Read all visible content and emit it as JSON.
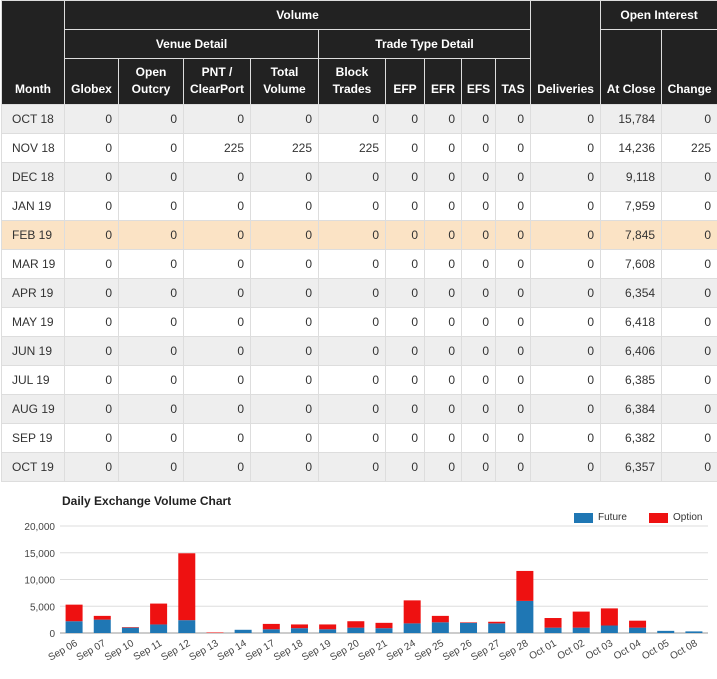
{
  "table": {
    "group_volume": "Volume",
    "group_open_interest": "Open Interest",
    "sub_venue": "Venue Detail",
    "sub_trade_type": "Trade Type Detail",
    "col_month": "Month",
    "col_globex": "Globex",
    "col_open_outcry": "Open Outcry",
    "col_pnt": "PNT / ClearPort",
    "col_total_volume": "Total Volume",
    "col_block_trades": "Block Trades",
    "col_efp": "EFP",
    "col_efr": "EFR",
    "col_efs": "EFS",
    "col_tas": "TAS",
    "col_deliveries": "Deliveries",
    "col_at_close": "At Close",
    "col_change": "Change",
    "rows": [
      {
        "month": "OCT 18",
        "globex": "0",
        "open_outcry": "0",
        "pnt": "0",
        "total": "0",
        "block": "0",
        "efp": "0",
        "efr": "0",
        "efs": "0",
        "tas": "0",
        "deliveries": "0",
        "at_close": "15,784",
        "change": "0"
      },
      {
        "month": "NOV 18",
        "globex": "0",
        "open_outcry": "0",
        "pnt": "225",
        "total": "225",
        "block": "225",
        "efp": "0",
        "efr": "0",
        "efs": "0",
        "tas": "0",
        "deliveries": "0",
        "at_close": "14,236",
        "change": "225"
      },
      {
        "month": "DEC 18",
        "globex": "0",
        "open_outcry": "0",
        "pnt": "0",
        "total": "0",
        "block": "0",
        "efp": "0",
        "efr": "0",
        "efs": "0",
        "tas": "0",
        "deliveries": "0",
        "at_close": "9,118",
        "change": "0"
      },
      {
        "month": "JAN 19",
        "globex": "0",
        "open_outcry": "0",
        "pnt": "0",
        "total": "0",
        "block": "0",
        "efp": "0",
        "efr": "0",
        "efs": "0",
        "tas": "0",
        "deliveries": "0",
        "at_close": "7,959",
        "change": "0"
      },
      {
        "month": "FEB 19",
        "globex": "0",
        "open_outcry": "0",
        "pnt": "0",
        "total": "0",
        "block": "0",
        "efp": "0",
        "efr": "0",
        "efs": "0",
        "tas": "0",
        "deliveries": "0",
        "at_close": "7,845",
        "change": "0"
      },
      {
        "month": "MAR 19",
        "globex": "0",
        "open_outcry": "0",
        "pnt": "0",
        "total": "0",
        "block": "0",
        "efp": "0",
        "efr": "0",
        "efs": "0",
        "tas": "0",
        "deliveries": "0",
        "at_close": "7,608",
        "change": "0"
      },
      {
        "month": "APR 19",
        "globex": "0",
        "open_outcry": "0",
        "pnt": "0",
        "total": "0",
        "block": "0",
        "efp": "0",
        "efr": "0",
        "efs": "0",
        "tas": "0",
        "deliveries": "0",
        "at_close": "6,354",
        "change": "0"
      },
      {
        "month": "MAY 19",
        "globex": "0",
        "open_outcry": "0",
        "pnt": "0",
        "total": "0",
        "block": "0",
        "efp": "0",
        "efr": "0",
        "efs": "0",
        "tas": "0",
        "deliveries": "0",
        "at_close": "6,418",
        "change": "0"
      },
      {
        "month": "JUN 19",
        "globex": "0",
        "open_outcry": "0",
        "pnt": "0",
        "total": "0",
        "block": "0",
        "efp": "0",
        "efr": "0",
        "efs": "0",
        "tas": "0",
        "deliveries": "0",
        "at_close": "6,406",
        "change": "0"
      },
      {
        "month": "JUL 19",
        "globex": "0",
        "open_outcry": "0",
        "pnt": "0",
        "total": "0",
        "block": "0",
        "efp": "0",
        "efr": "0",
        "efs": "0",
        "tas": "0",
        "deliveries": "0",
        "at_close": "6,385",
        "change": "0"
      },
      {
        "month": "AUG 19",
        "globex": "0",
        "open_outcry": "0",
        "pnt": "0",
        "total": "0",
        "block": "0",
        "efp": "0",
        "efr": "0",
        "efs": "0",
        "tas": "0",
        "deliveries": "0",
        "at_close": "6,384",
        "change": "0"
      },
      {
        "month": "SEP 19",
        "globex": "0",
        "open_outcry": "0",
        "pnt": "0",
        "total": "0",
        "block": "0",
        "efp": "0",
        "efr": "0",
        "efs": "0",
        "tas": "0",
        "deliveries": "0",
        "at_close": "6,382",
        "change": "0"
      },
      {
        "month": "OCT 19",
        "globex": "0",
        "open_outcry": "0",
        "pnt": "0",
        "total": "0",
        "block": "0",
        "efp": "0",
        "efr": "0",
        "efs": "0",
        "tas": "0",
        "deliveries": "0",
        "at_close": "6,357",
        "change": "0"
      }
    ],
    "highlight_color": "#fbe3c5"
  },
  "chart_data": {
    "type": "bar",
    "stacked": true,
    "title": "Daily Exchange Volume Chart",
    "categories": [
      "Sep 06",
      "Sep 07",
      "Sep 10",
      "Sep 11",
      "Sep 12",
      "Sep 13",
      "Sep 14",
      "Sep 17",
      "Sep 18",
      "Sep 19",
      "Sep 20",
      "Sep 21",
      "Sep 24",
      "Sep 25",
      "Sep 26",
      "Sep 27",
      "Sep 28",
      "Oct 01",
      "Oct 02",
      "Oct 03",
      "Oct 04",
      "Oct 05",
      "Oct 08"
    ],
    "series": [
      {
        "name": "Future",
        "color": "#1f77b4",
        "values": [
          2200,
          2500,
          1000,
          1600,
          2400,
          0,
          600,
          700,
          900,
          700,
          1000,
          900,
          1800,
          2000,
          1900,
          1800,
          6000,
          1000,
          1000,
          1400,
          1000,
          400,
          300
        ]
      },
      {
        "name": "Option",
        "color": "#ee1111",
        "values": [
          3100,
          700,
          100,
          3900,
          12500,
          100,
          0,
          1000,
          700,
          900,
          1200,
          1000,
          4300,
          1200,
          100,
          300,
          5600,
          1800,
          3000,
          3200,
          1300,
          0,
          0
        ]
      }
    ],
    "ylim": [
      0,
      20000
    ],
    "yticks": [
      "0",
      "5,000",
      "10,000",
      "15,000",
      "20,000"
    ],
    "grid": true,
    "legend": "top-right"
  }
}
